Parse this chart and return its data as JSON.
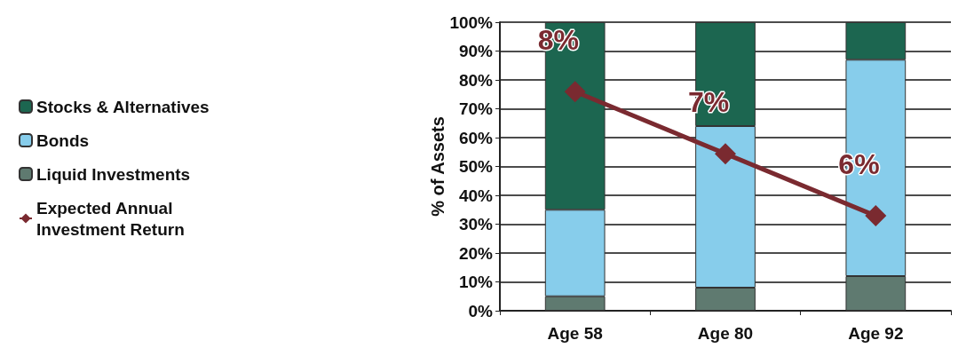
{
  "chart_data": {
    "type": "bar",
    "stacked": true,
    "ylabel": "% of Assets",
    "categories": [
      "Age 58",
      "Age 80",
      "Age 92"
    ],
    "series": [
      {
        "name": "Liquid Investments",
        "color": "#5f7a70",
        "values": [
          5,
          8,
          12
        ]
      },
      {
        "name": "Bonds",
        "color": "#87cdeb",
        "values": [
          30,
          56,
          75
        ]
      },
      {
        "name": "Stocks & Alternatives",
        "color": "#1c6650",
        "values": [
          65,
          36,
          13
        ]
      },
      {
        "name": "Expected Annual Investment Return",
        "type": "line",
        "color": "#7a2a30",
        "marker": "diamond",
        "axis": "y2",
        "values": [
          8,
          7,
          6
        ],
        "value_labels": [
          "8%",
          "7%",
          "6%"
        ]
      }
    ],
    "ylim": [
      0,
      100
    ],
    "yticks": [
      {
        "value": 0,
        "label": "0%"
      },
      {
        "value": 10,
        "label": "10%"
      },
      {
        "value": 20,
        "label": "20%"
      },
      {
        "value": 30,
        "label": "30%"
      },
      {
        "value": 40,
        "label": "40%"
      },
      {
        "value": 50,
        "label": "50%"
      },
      {
        "value": 60,
        "label": "60%"
      },
      {
        "value": 70,
        "label": "70%"
      },
      {
        "value": 80,
        "label": "80%"
      },
      {
        "value": 90,
        "label": "90%"
      },
      {
        "value": 100,
        "label": "100%"
      }
    ],
    "y2lim": [
      4.47,
      9.12
    ],
    "grid": "y",
    "legend": "left"
  }
}
